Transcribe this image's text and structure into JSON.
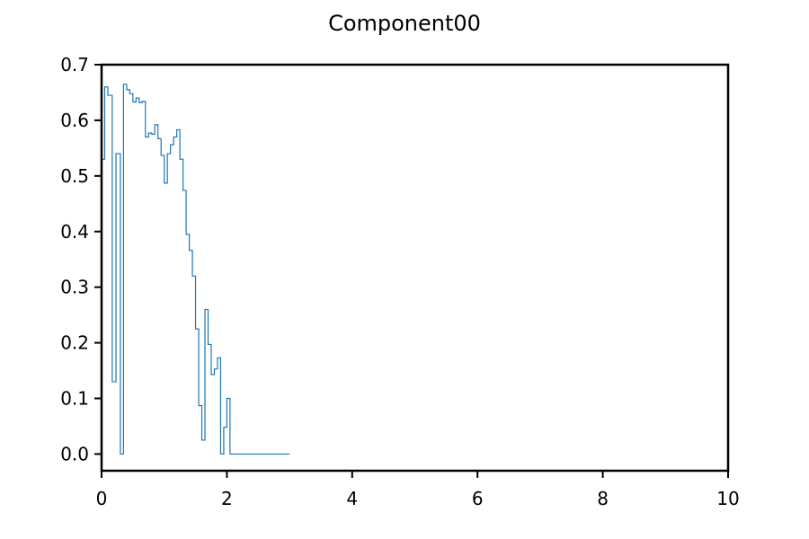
{
  "chart_data": {
    "type": "line",
    "drawstyle": "steps-post",
    "title": "Component00",
    "xlabel": "",
    "ylabel": "",
    "xlim": [
      0,
      10
    ],
    "ylim": [
      -0.03,
      0.7
    ],
    "xticks": [
      0,
      2,
      4,
      6,
      8,
      10
    ],
    "yticks": [
      0.0,
      0.1,
      0.2,
      0.3,
      0.4,
      0.5,
      0.6,
      0.7
    ],
    "grid": false,
    "line_color": "#1f77b4",
    "series": [
      {
        "x": [
          0.0,
          0.05,
          0.1,
          0.17,
          0.23,
          0.3,
          0.35,
          0.4,
          0.45,
          0.5,
          0.55,
          0.6,
          0.65,
          0.7,
          0.75,
          0.8,
          0.85,
          0.9,
          0.95,
          1.0,
          1.05,
          1.1,
          1.15,
          1.2,
          1.25,
          1.3,
          1.35,
          1.4,
          1.45,
          1.5,
          1.55,
          1.6,
          1.65,
          1.7,
          1.75,
          1.8,
          1.85,
          1.9,
          1.95,
          2.0,
          2.05,
          2.1,
          2.15,
          2.2,
          2.25,
          2.3,
          2.35,
          2.4,
          2.45,
          3.0
        ],
        "y": [
          0.53,
          0.66,
          0.645,
          0.13,
          0.54,
          0.0,
          0.665,
          0.655,
          0.648,
          0.633,
          0.64,
          0.632,
          0.634,
          0.57,
          0.577,
          0.575,
          0.592,
          0.567,
          0.537,
          0.487,
          0.54,
          0.556,
          0.57,
          0.583,
          0.53,
          0.474,
          0.395,
          0.366,
          0.32,
          0.225,
          0.087,
          0.025,
          0.26,
          0.197,
          0.143,
          0.153,
          0.173,
          0.0,
          0.048,
          0.1,
          0.0,
          0.0,
          0.0,
          0.0,
          0.0,
          0.0,
          0.0,
          0.0,
          0.0,
          0.0
        ]
      }
    ]
  }
}
